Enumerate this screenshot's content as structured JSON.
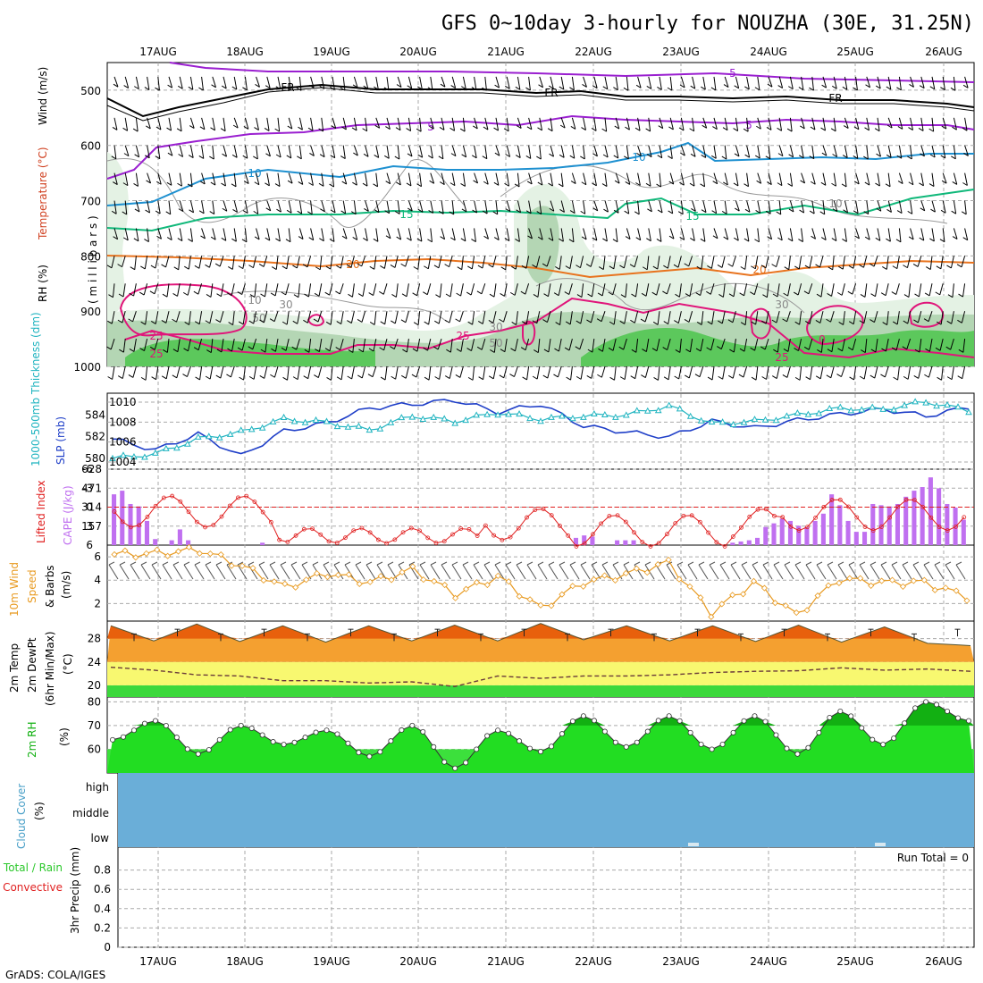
{
  "title": "GFS 0~10day 3-hourly for NOUZHA (30E, 31.25N)",
  "footer": "GrADS: COLA/IGES",
  "dates": [
    "17AUG",
    "18AUG",
    "19AUG",
    "20AUG",
    "21AUG",
    "22AUG",
    "23AUG",
    "24AUG",
    "25AUG",
    "26AUG"
  ],
  "colors": {
    "temp_5": "#9a1fd0",
    "temp_10": "#1e90d0",
    "temp_15": "#10b87a",
    "temp_20": "#e8731e",
    "temp_25": "#e0157a",
    "rh_light": "#e4f2e4",
    "rh_mid": "#b4d6b4",
    "rh_dark": "#5cc85c",
    "slp": "#1f3fc8",
    "thickness": "#20b4c0",
    "lifted": "#e02020",
    "cape": "#c070f0",
    "wind_speed": "#e89a20",
    "temp_fill": "#f08020",
    "dew_band": "#f8f870",
    "green_band": "#3cd83c",
    "cloud": "#6aaed8"
  },
  "panels": {
    "upper": {
      "ylabel_rh": "RH (%)",
      "ylabel_temp": "Temperature (°C)",
      "ylabel_wind": "Wind (m/s)",
      "ylabel_p": "( m i l l i b a r s )",
      "yticks": [
        "500",
        "600",
        "700",
        "800",
        "900",
        "1000"
      ],
      "contour_labels": {
        "fr": "FR",
        "t5": "5",
        "t10": "10",
        "t15": "15",
        "t20": "20",
        "t25": "25",
        "t0": "0",
        "r10": "10",
        "r30": "30",
        "r50": "50"
      }
    },
    "slp": {
      "ylabel_thick": "1000-500mb Thickness (dm)",
      "ylabel_slp": "SLP (mb)",
      "yticks_left": [
        "580",
        "582",
        "584"
      ],
      "yticks_right": [
        "1004",
        "1006",
        "1008",
        "1010"
      ]
    },
    "cape": {
      "ylabel_li": "Lifted Index",
      "ylabel_cape": "CAPE (J/kg)",
      "yticks_left": [
        "-6",
        "-3",
        "0",
        "3",
        "6"
      ],
      "yticks_right": [
        "628",
        "471",
        "314",
        "157"
      ]
    },
    "wind10": {
      "ylabel1": "10m Wind",
      "ylabel2": "Speed",
      "ylabel3": "& Barbs",
      "ylabel_unit": "(m/s)",
      "yticks": [
        "6",
        "4",
        "2"
      ]
    },
    "temp2m": {
      "ylabel1": "2m Temp",
      "ylabel2": "2m DewPt",
      "ylabel3": "(6hr Min/Max)",
      "ylabel_unit": "(°C)",
      "yticks": [
        "28",
        "24",
        "20"
      ]
    },
    "rh2m": {
      "ylabel": "2m RH",
      "ylabel_unit": "(%)",
      "yticks": [
        "80",
        "70",
        "60"
      ]
    },
    "cloud": {
      "ylabel": "Cloud Cover",
      "ylabel_unit": "(%)",
      "levels": [
        "high",
        "middle",
        "low"
      ]
    },
    "precip": {
      "ylabel_total": "Total / Rain",
      "ylabel_conv": "Convective",
      "ylabel_unit": "3hr Precip (mm)",
      "run_total": "Run Total = 0",
      "yticks": [
        "0.8",
        "0.6",
        "0.4",
        "0.2",
        "0"
      ]
    }
  },
  "chart_data": [
    {
      "type": "line",
      "title": "SLP (mb)",
      "x": [
        "16AUG12",
        "17AUG00",
        "17AUG12",
        "18AUG00",
        "18AUG12",
        "19AUG00",
        "19AUG12",
        "20AUG00",
        "20AUG12",
        "21AUG00",
        "21AUG12",
        "22AUG00",
        "22AUG12",
        "23AUG00",
        "23AUG12",
        "24AUG00",
        "24AUG12",
        "25AUG00",
        "25AUG12",
        "26AUG00",
        "26AUG06"
      ],
      "values": [
        1006.3,
        1005.2,
        1006.8,
        1004.6,
        1007.1,
        1007.9,
        1009.4,
        1009.8,
        1010.2,
        1009.0,
        1009.8,
        1007.6,
        1007.0,
        1006.5,
        1008.1,
        1007.4,
        1008.2,
        1008.8,
        1009.3,
        1008.6,
        1009.5
      ],
      "ylim": [
        1004,
        1010
      ]
    },
    {
      "type": "line",
      "title": "1000-500mb Thickness (dm)",
      "x": [
        "16AUG12",
        "17AUG00",
        "17AUG12",
        "18AUG00",
        "18AUG12",
        "19AUG00",
        "19AUG12",
        "20AUG00",
        "20AUG12",
        "21AUG00",
        "21AUG12",
        "22AUG00",
        "22AUG12",
        "23AUG00",
        "23AUG12",
        "24AUG00",
        "24AUG12",
        "25AUG00",
        "25AUG12",
        "26AUG00",
        "26AUG06"
      ],
      "values": [
        580.0,
        580.4,
        581.8,
        582.4,
        583.6,
        583.3,
        582.6,
        583.9,
        583.4,
        584.2,
        583.6,
        583.9,
        584.0,
        584.8,
        583.2,
        583.4,
        584.0,
        584.6,
        584.5,
        585.2,
        584.4
      ],
      "ylim": [
        579.5,
        585.5
      ]
    },
    {
      "type": "bar",
      "title": "CAPE (J/kg)",
      "x": [
        "16AUG12",
        "16AUG15",
        "16AUG18",
        "16AUG21",
        "17AUG00",
        "17AUG03",
        "17AUG06",
        "17AUG09",
        "17AUG12",
        "17AUG15",
        "17AUG18",
        "17AUG21"
      ],
      "values": [
        420,
        450,
        340,
        320,
        200,
        50,
        0,
        40,
        130,
        40,
        0,
        0
      ],
      "note": "sample of first values; full series drawn",
      "ylim": [
        0,
        628
      ]
    },
    {
      "type": "line",
      "title": "2m RH (%)",
      "x": [
        "16AUG12",
        "17AUG00",
        "17AUG12",
        "18AUG00",
        "18AUG12",
        "19AUG00",
        "19AUG12",
        "20AUG00",
        "20AUG12",
        "21AUG00",
        "21AUG12",
        "22AUG00",
        "22AUG12",
        "23AUG00",
        "23AUG12",
        "24AUG00",
        "24AUG12",
        "25AUG00",
        "25AUG12",
        "26AUG00",
        "26AUG06"
      ],
      "values": [
        64,
        72,
        58,
        70,
        62,
        68,
        57,
        70,
        52,
        68,
        59,
        74,
        61,
        74,
        60,
        74,
        58,
        76,
        62,
        80,
        72
      ],
      "ylim": [
        50,
        82
      ]
    },
    {
      "type": "line",
      "title": "10m Wind Speed (m/s)",
      "x": [
        "16AUG12",
        "17AUG00",
        "17AUG12",
        "18AUG00",
        "18AUG12",
        "19AUG00",
        "19AUG12",
        "20AUG00",
        "20AUG12",
        "21AUG00",
        "21AUG12",
        "22AUG00",
        "22AUG12",
        "23AUG00",
        "23AUG12",
        "24AUG00",
        "24AUG12",
        "25AUG00",
        "25AUG12",
        "26AUG00",
        "26AUG06"
      ],
      "values": [
        6.2,
        6.3,
        6.6,
        5.2,
        3.4,
        4.6,
        3.8,
        4.9,
        2.8,
        4.3,
        1.6,
        3.8,
        4.5,
        5.5,
        1.2,
        3.8,
        1.0,
        4.1,
        3.8,
        3.8,
        2.6
      ],
      "ylim": [
        0.5,
        7
      ]
    },
    {
      "type": "line",
      "title": "2m Temp (°C)",
      "x": [
        "16AUG12",
        "17AUG00",
        "17AUG12",
        "18AUG00",
        "18AUG12",
        "19AUG00",
        "19AUG12",
        "20AUG00",
        "20AUG12",
        "21AUG00",
        "21AUG12",
        "22AUG00",
        "22AUG12",
        "23AUG00",
        "23AUG12",
        "24AUG00",
        "24AUG12",
        "25AUG00",
        "25AUG12",
        "26AUG00",
        "26AUG06"
      ],
      "values": [
        30.2,
        27.6,
        30.5,
        27.5,
        30.2,
        27.4,
        30.2,
        27.6,
        30.3,
        27.6,
        30.6,
        27.8,
        30.2,
        27.6,
        30.2,
        27.5,
        30.3,
        27.4,
        30.0,
        27.2,
        26.8
      ],
      "ylim": [
        18,
        31
      ]
    },
    {
      "type": "line",
      "title": "2m DewPt (°C)",
      "x": [
        "16AUG12",
        "17AUG00",
        "17AUG12",
        "18AUG00",
        "18AUG12",
        "19AUG00",
        "19AUG12",
        "20AUG00",
        "20AUG12",
        "21AUG00",
        "21AUG12",
        "22AUG00",
        "22AUG12",
        "23AUG00",
        "23AUG12",
        "24AUG00",
        "24AUG12",
        "25AUG00",
        "25AUG12",
        "26AUG00",
        "26AUG06"
      ],
      "values": [
        23.1,
        22.6,
        21.8,
        21.6,
        20.8,
        20.8,
        20.4,
        20.6,
        19.8,
        21.6,
        21.2,
        21.6,
        21.6,
        21.8,
        22.2,
        22.4,
        22.5,
        23.0,
        22.6,
        22.8,
        22.4
      ],
      "ylim": [
        18,
        31
      ]
    },
    {
      "type": "line",
      "title": "3hr Precip (mm)",
      "x": [
        "16AUG12",
        "26AUG06"
      ],
      "values": [
        0,
        0
      ],
      "ylim": [
        0,
        1
      ]
    }
  ]
}
